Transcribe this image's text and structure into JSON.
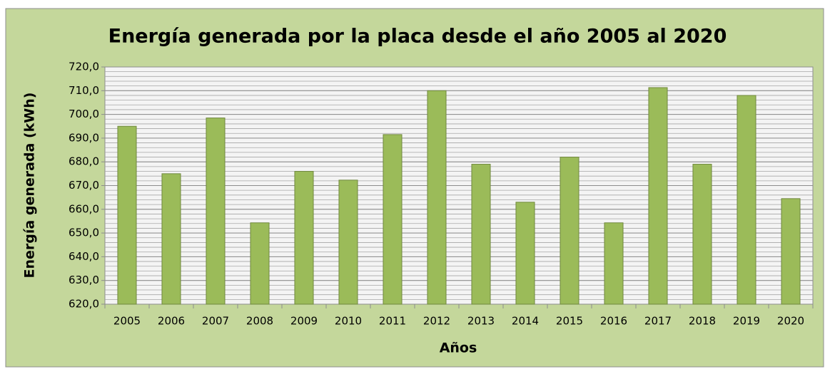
{
  "chart_data": {
    "type": "bar",
    "title": "Energía generada por la placa desde el año 2005 al 2020",
    "x_label": "Años",
    "y_label": "Energía generada (kWh)",
    "categories": [
      "2005",
      "2006",
      "2007",
      "2008",
      "2009",
      "2010",
      "2011",
      "2012",
      "2013",
      "2014",
      "2015",
      "2016",
      "2017",
      "2018",
      "2019",
      "2020"
    ],
    "values": [
      695,
      675,
      698.5,
      654.3,
      676,
      672.3,
      691.5,
      710,
      679,
      663,
      682,
      654.3,
      711.3,
      679,
      708,
      664.5
    ],
    "color": "#9bbb59",
    "ylim": [
      620,
      720
    ],
    "yticks": [
      {
        "value": 620,
        "label": "620,0"
      },
      {
        "value": 630,
        "label": "630,0"
      },
      {
        "value": 640,
        "label": "640,0"
      },
      {
        "value": 650,
        "label": "650,0"
      },
      {
        "value": 660,
        "label": "660,0"
      },
      {
        "value": 670,
        "label": "670,0"
      },
      {
        "value": 680,
        "label": "680,0"
      },
      {
        "value": 690,
        "label": "690,0"
      },
      {
        "value": 700,
        "label": "700,0"
      },
      {
        "value": 710,
        "label": "710,0"
      },
      {
        "value": 720,
        "label": "720,0"
      }
    ],
    "grid": true,
    "minor_grid_step": 2
  }
}
